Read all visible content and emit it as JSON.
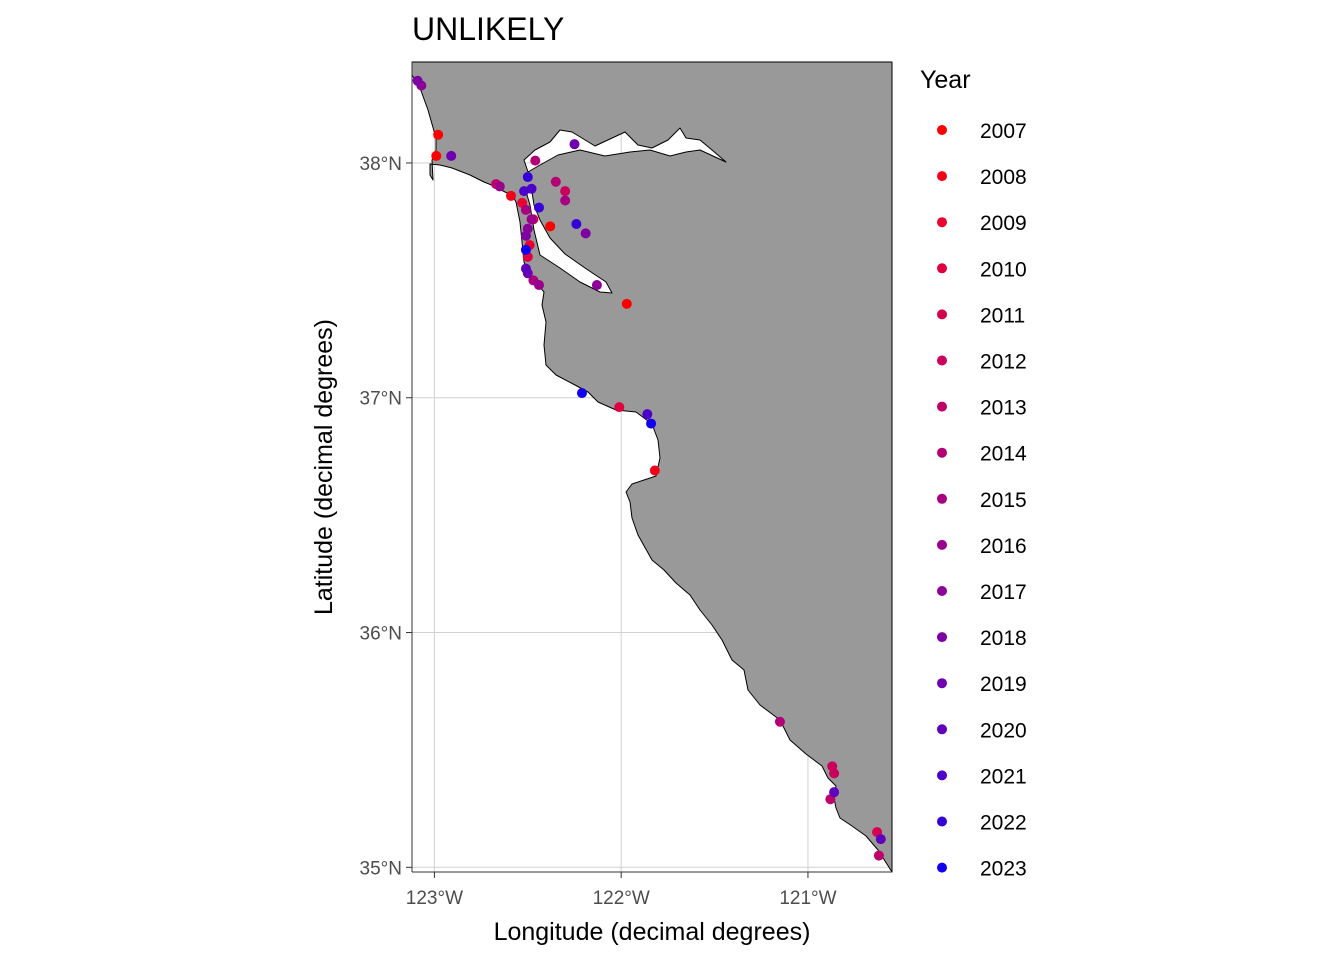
{
  "title": "UNLIKELY",
  "xlabel": "Longitude (decimal degrees)",
  "ylabel": "Latitude (decimal degrees)",
  "legend_title": "Year",
  "colors": {
    "land": "#999999",
    "water": "#ffffff",
    "grid": "#d0d0d0",
    "coast": "#000000"
  },
  "chart_data": {
    "type": "scatter",
    "xlim": [
      -123.12,
      -120.55
    ],
    "ylim": [
      34.98,
      38.43
    ],
    "x_ticks": [
      {
        "value": -123,
        "label": "123°W"
      },
      {
        "value": -122,
        "label": "122°W"
      },
      {
        "value": -121,
        "label": "121°W"
      }
    ],
    "y_ticks": [
      {
        "value": 35,
        "label": "35°N"
      },
      {
        "value": 36,
        "label": "36°N"
      },
      {
        "value": 37,
        "label": "37°N"
      },
      {
        "value": 38,
        "label": "38°N"
      }
    ],
    "grid": true,
    "legend_position": "right",
    "series": [
      {
        "name": "2007",
        "color": "#ff0000",
        "points": [
          [
            -122.98,
            38.12
          ],
          [
            -122.99,
            38.03
          ],
          [
            -122.38,
            37.73
          ],
          [
            -121.97,
            37.4
          ]
        ]
      },
      {
        "name": "2008",
        "color": "#f5001a",
        "points": [
          [
            -122.59,
            37.86
          ],
          [
            -121.82,
            36.69
          ]
        ]
      },
      {
        "name": "2009",
        "color": "#eb0030",
        "points": [
          [
            -122.53,
            37.83
          ],
          [
            -122.49,
            37.65
          ]
        ]
      },
      {
        "name": "2010",
        "color": "#e00040",
        "points": [
          [
            -122.5,
            37.6
          ],
          [
            -122.01,
            36.96
          ]
        ]
      },
      {
        "name": "2011",
        "color": "#d5004e",
        "points": [
          [
            -120.63,
            35.15
          ],
          [
            -122.47,
            37.76
          ]
        ]
      },
      {
        "name": "2012",
        "color": "#ca005c",
        "points": [
          [
            -120.87,
            35.43
          ],
          [
            -120.86,
            35.4
          ],
          [
            -122.3,
            37.88
          ]
        ]
      },
      {
        "name": "2013",
        "color": "#bf0068",
        "points": [
          [
            -120.62,
            35.05
          ],
          [
            -120.88,
            35.29
          ],
          [
            -122.67,
            37.91
          ]
        ]
      },
      {
        "name": "2014",
        "color": "#b30074",
        "points": [
          [
            -122.46,
            38.01
          ],
          [
            -121.15,
            35.62
          ],
          [
            -122.35,
            37.92
          ]
        ]
      },
      {
        "name": "2015",
        "color": "#a60080",
        "points": [
          [
            -122.51,
            37.8
          ],
          [
            -122.3,
            37.84
          ],
          [
            -122.47,
            37.5
          ]
        ]
      },
      {
        "name": "2016",
        "color": "#99008c",
        "points": [
          [
            -122.65,
            37.9
          ],
          [
            -122.48,
            37.76
          ],
          [
            -122.44,
            37.48
          ]
        ]
      },
      {
        "name": "2017",
        "color": "#8c0098",
        "points": [
          [
            -122.5,
            37.72
          ],
          [
            -122.13,
            37.48
          ],
          [
            -123.07,
            38.33
          ]
        ]
      },
      {
        "name": "2018",
        "color": "#7e00a4",
        "points": [
          [
            -122.19,
            37.7
          ],
          [
            -122.51,
            37.69
          ],
          [
            -123.09,
            38.35
          ]
        ]
      },
      {
        "name": "2019",
        "color": "#6f00b0",
        "points": [
          [
            -122.25,
            38.08
          ],
          [
            -122.91,
            38.03
          ],
          [
            -122.5,
            37.53
          ]
        ]
      },
      {
        "name": "2020",
        "color": "#5f00bd",
        "points": [
          [
            -120.61,
            35.12
          ],
          [
            -120.86,
            35.32
          ],
          [
            -122.51,
            37.55
          ]
        ]
      },
      {
        "name": "2021",
        "color": "#4d00ca",
        "points": [
          [
            -122.52,
            37.88
          ],
          [
            -121.86,
            36.93
          ],
          [
            -122.48,
            37.89
          ]
        ]
      },
      {
        "name": "2022",
        "color": "#3600d8",
        "points": [
          [
            -122.5,
            37.94
          ],
          [
            -122.44,
            37.81
          ],
          [
            -122.24,
            37.74
          ]
        ]
      },
      {
        "name": "2023",
        "color": "#1000ee",
        "points": [
          [
            -122.21,
            37.02
          ],
          [
            -121.84,
            36.89
          ],
          [
            -122.51,
            37.63
          ]
        ]
      }
    ]
  }
}
